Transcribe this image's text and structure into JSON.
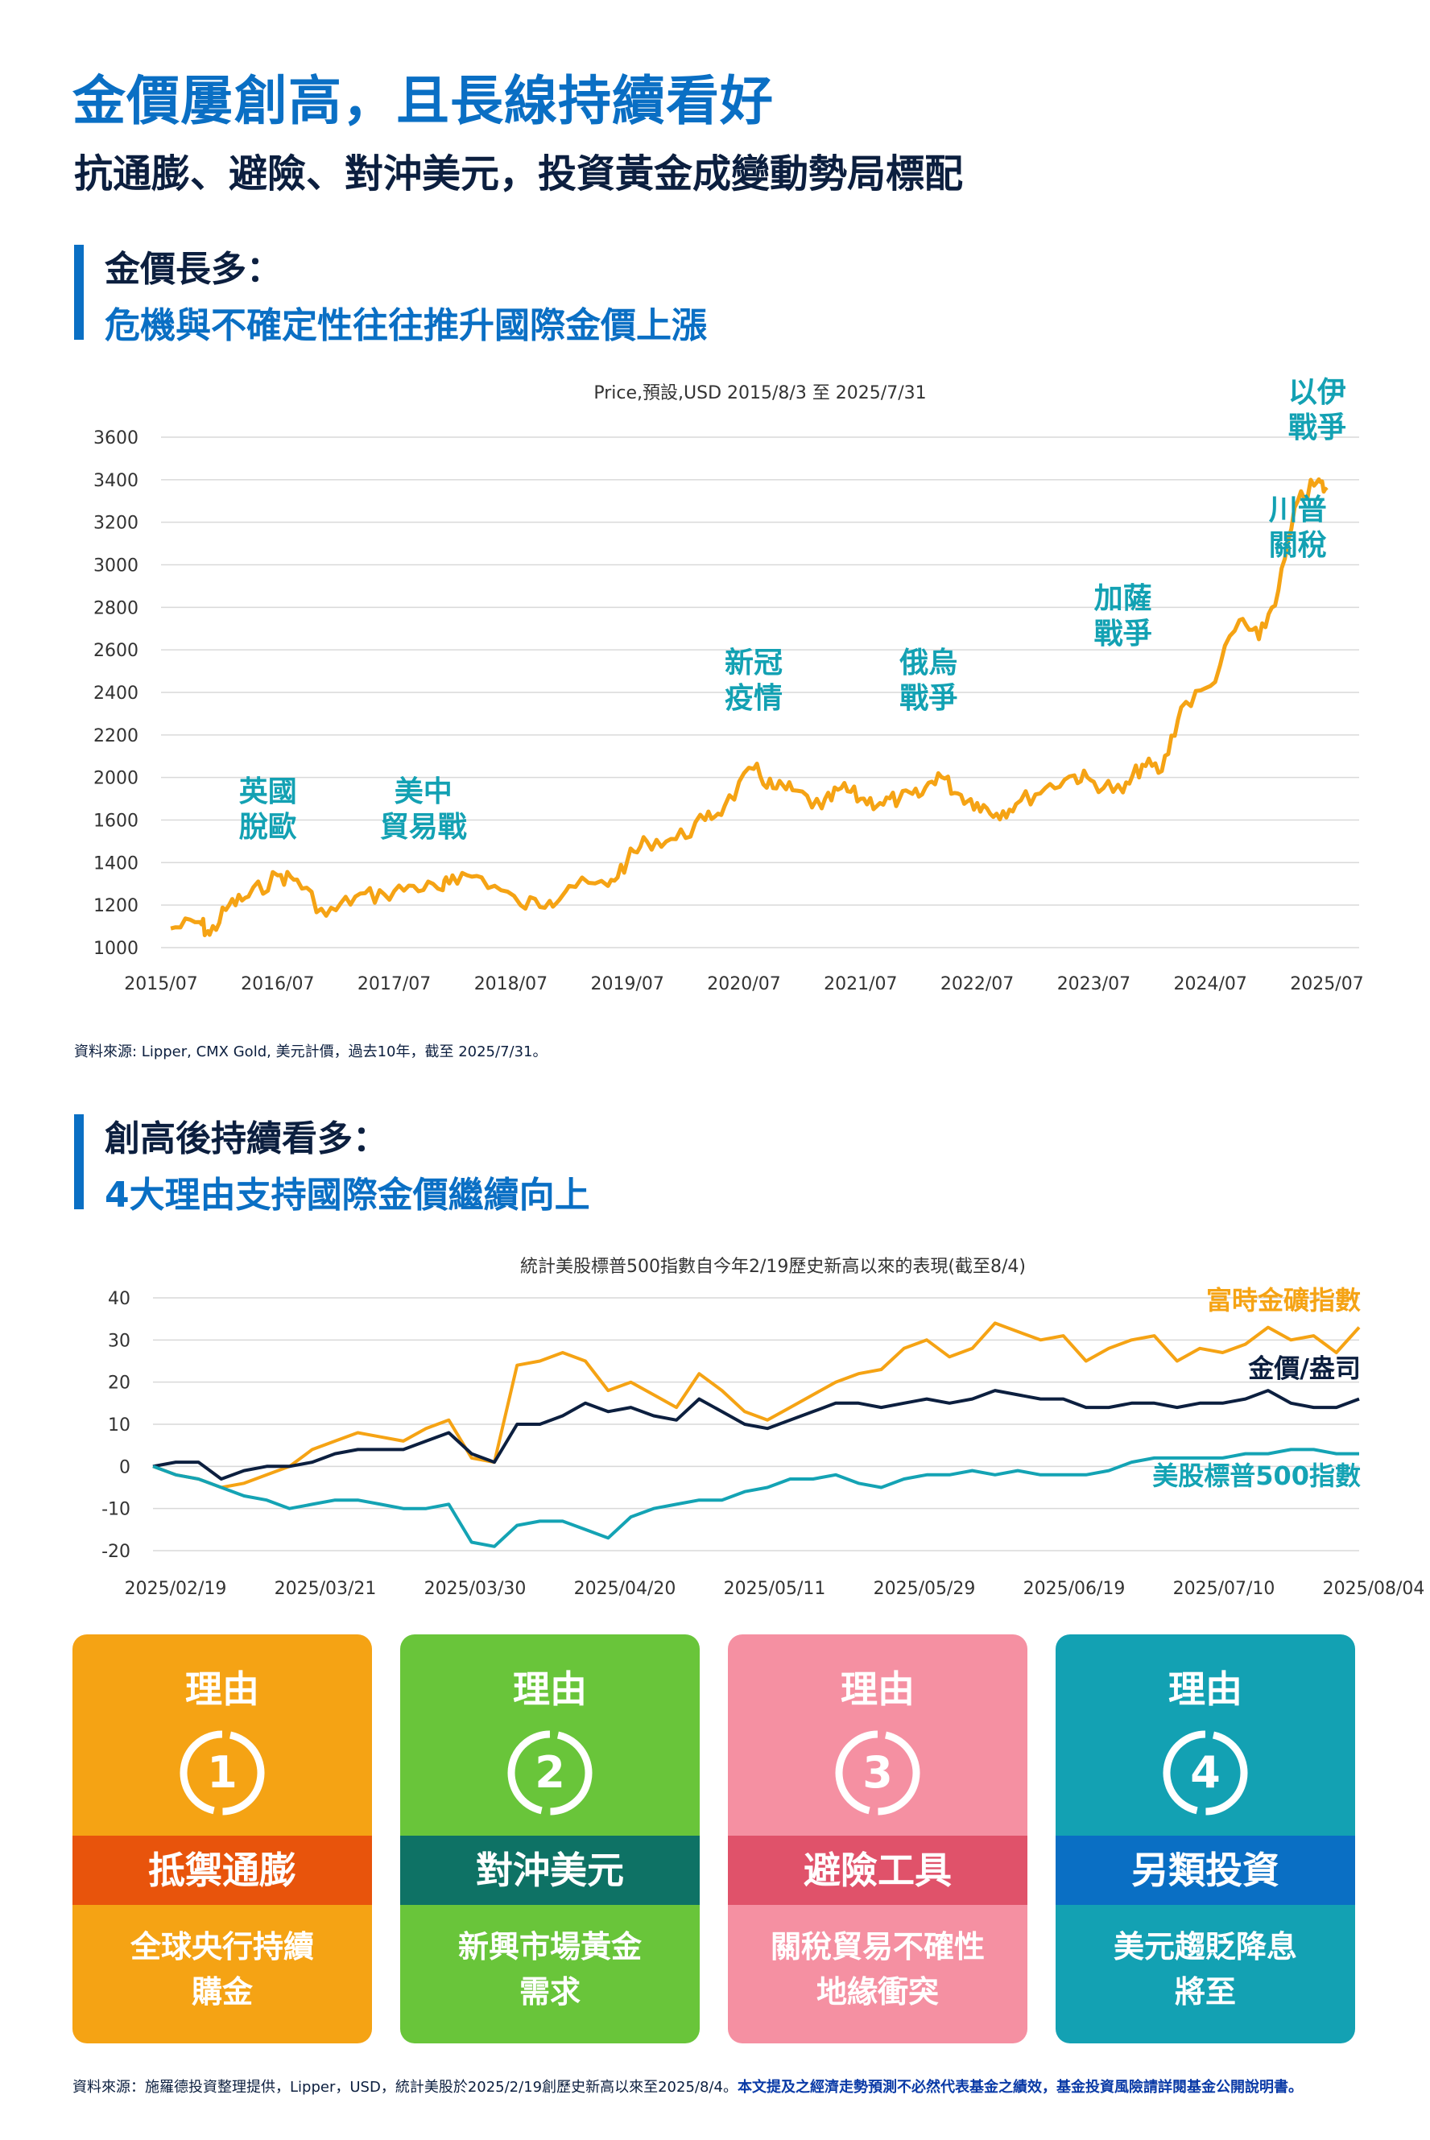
{
  "header": {
    "title": "金價屢創高，且長線持續看好",
    "subtitle": "抗通膨、避險、對沖美元，投資黃金成變動勢局標配"
  },
  "section1": {
    "heading_line1": "金價長多：",
    "heading_line2": "危機與不確定性往往推升國際金價上漲",
    "source": "資料來源: Lipper, CMX Gold, 美元計價，過去10年，截至 2025/7/31。"
  },
  "section2": {
    "heading_line1": "創高後持續看多：",
    "heading_line2": "4大理由支持國際金價繼續向上"
  },
  "colors": {
    "gold": "#f5a314",
    "navy": "#0c1f3f",
    "teal": "#14a3b4",
    "blue": "#0a6fc4"
  },
  "chart_data": [
    {
      "type": "line",
      "title": "Price,預設,USD 2015/8/3 至 2025/7/31",
      "x_tick_labels": [
        "2015/07",
        "2016/07",
        "2017/07",
        "2018/07",
        "2019/07",
        "2020/07",
        "2021/07",
        "2022/07",
        "2023/07",
        "2024/07",
        "2025/07"
      ],
      "y_tick_labels": [
        "1000",
        "1200",
        "1400",
        "1600",
        "2000",
        "2200",
        "2400",
        "2600",
        "2800",
        "3000",
        "3200",
        "3400",
        "3600"
      ],
      "series": [
        {
          "color": "#f5a314",
          "points": [
            [
              "2015/08",
              1090
            ],
            [
              "2015/11",
              1120
            ],
            [
              "2015/12",
              1060
            ],
            [
              "2016/02",
              1200
            ],
            [
              "2016/04",
              1240
            ],
            [
              "2016/07",
              1340
            ],
            [
              "2016/09",
              1320
            ],
            [
              "2016/12",
              1150
            ],
            [
              "2017/03",
              1240
            ],
            [
              "2017/06",
              1250
            ],
            [
              "2017/09",
              1290
            ],
            [
              "2017/12",
              1270
            ],
            [
              "2018/01",
              1340
            ],
            [
              "2018/04",
              1330
            ],
            [
              "2018/08",
              1200
            ],
            [
              "2018/11",
              1220
            ],
            [
              "2019/01",
              1290
            ],
            [
              "2019/05",
              1290
            ],
            [
              "2019/07",
              1410
            ],
            [
              "2019/09",
              1500
            ],
            [
              "2019/12",
              1510
            ],
            [
              "2020/03",
              1600
            ],
            [
              "2020/05",
              1730
            ],
            [
              "2020/08",
              2040
            ],
            [
              "2020/10",
              1900
            ],
            [
              "2020/12",
              1880
            ],
            [
              "2021/03",
              1710
            ],
            [
              "2021/05",
              1900
            ],
            [
              "2021/07",
              1800
            ],
            [
              "2021/09",
              1760
            ],
            [
              "2021/11",
              1800
            ],
            [
              "2022/01",
              1820
            ],
            [
              "2022/03",
              2020
            ],
            [
              "2022/05",
              1850
            ],
            [
              "2022/07",
              1760
            ],
            [
              "2022/09",
              1660
            ],
            [
              "2022/11",
              1750
            ],
            [
              "2023/02",
              1900
            ],
            [
              "2023/05",
              2010
            ],
            [
              "2023/07",
              1960
            ],
            [
              "2023/10",
              1860
            ],
            [
              "2023/12",
              2060
            ],
            [
              "2024/02",
              2030
            ],
            [
              "2024/04",
              2330
            ],
            [
              "2024/07",
              2430
            ],
            [
              "2024/10",
              2740
            ],
            [
              "2024/12",
              2650
            ],
            [
              "2025/02",
              2880
            ],
            [
              "2025/04",
              3300
            ],
            [
              "2025/06",
              3390
            ],
            [
              "2025/07",
              3350
            ]
          ]
        }
      ],
      "annotations": [
        {
          "text": "英國脫歐",
          "x": "2016/06"
        },
        {
          "text": "美中貿易戰",
          "x": "2017/10"
        },
        {
          "text": "新冠疫情",
          "x": "2020/08"
        },
        {
          "text": "俄烏戰爭",
          "x": "2022/02"
        },
        {
          "text": "加薩戰爭",
          "x": "2023/10"
        },
        {
          "text": "川普關稅",
          "x": "2025/04"
        },
        {
          "text": "以伊戰爭",
          "x": "2025/06"
        }
      ]
    },
    {
      "type": "line",
      "title": "統計美股標普500指數自今年2/19歷史新高以來的表現(截至8/4)",
      "x_tick_labels": [
        "2025/02/19",
        "2025/03/21",
        "2025/03/30",
        "2025/04/20",
        "2025/05/11",
        "2025/05/29",
        "2025/06/19",
        "2025/07/10",
        "2025/08/04"
      ],
      "ylim": [
        -20,
        40
      ],
      "y_ticks": [
        40,
        30,
        20,
        10,
        0,
        -10,
        -20
      ],
      "series": [
        {
          "name": "富時金礦指數",
          "color": "#f5a314",
          "values": [
            0,
            -2,
            -3,
            -5,
            -4,
            -2,
            0,
            4,
            6,
            8,
            7,
            6,
            9,
            11,
            2,
            1,
            24,
            25,
            27,
            25,
            18,
            20,
            17,
            14,
            22,
            18,
            13,
            11,
            14,
            17,
            20,
            22,
            23,
            28,
            30,
            26,
            28,
            34,
            32,
            30,
            31,
            25,
            28,
            30,
            31,
            25,
            28,
            27,
            29,
            33,
            30,
            31,
            27,
            33
          ]
        },
        {
          "name": "金價/盎司",
          "color": "#0c1f3f",
          "values": [
            0,
            1,
            1,
            -3,
            -1,
            0,
            0,
            1,
            3,
            4,
            4,
            4,
            6,
            8,
            3,
            1,
            10,
            10,
            12,
            15,
            13,
            14,
            12,
            11,
            16,
            13,
            10,
            9,
            11,
            13,
            15,
            15,
            14,
            15,
            16,
            15,
            16,
            18,
            17,
            16,
            16,
            14,
            14,
            15,
            15,
            14,
            15,
            15,
            16,
            18,
            15,
            14,
            14,
            16
          ]
        },
        {
          "name": "美股標普500指數",
          "color": "#14a3b4",
          "values": [
            0,
            -2,
            -3,
            -5,
            -7,
            -8,
            -10,
            -9,
            -8,
            -8,
            -9,
            -10,
            -10,
            -9,
            -18,
            -19,
            -14,
            -13,
            -13,
            -15,
            -17,
            -12,
            -10,
            -9,
            -8,
            -8,
            -6,
            -5,
            -3,
            -3,
            -2,
            -4,
            -5,
            -3,
            -2,
            -2,
            -1,
            -2,
            -1,
            -2,
            -2,
            -2,
            -1,
            1,
            2,
            2,
            2,
            2,
            3,
            3,
            4,
            4,
            3,
            3
          ]
        }
      ]
    }
  ],
  "reasons": [
    {
      "label": "理由",
      "number": "1",
      "title": "抵禦通膨",
      "desc_line1": "全球央行持續",
      "desc_line2": "購金",
      "bg": "#f5a314",
      "band": "#e8540c"
    },
    {
      "label": "理由",
      "number": "2",
      "title": "對沖美元",
      "desc_line1": "新興市場黃金",
      "desc_line2": "需求",
      "bg": "#69c53a",
      "band": "#0e7265"
    },
    {
      "label": "理由",
      "number": "3",
      "title": "避險工具",
      "desc_line1": "關稅貿易不確性",
      "desc_line2": "地緣衝突",
      "bg": "#f590a2",
      "band": "#e0526a"
    },
    {
      "label": "理由",
      "number": "4",
      "title": "另類投資",
      "desc_line1": "美元趨貶降息",
      "desc_line2": "將至",
      "bg": "#13a1b3",
      "band": "#0a6fc4"
    }
  ],
  "footer": {
    "text": "資料來源：施羅德投資整理提供，Lipper，USD，統計美股於2025/2/19創歷史新高以來至2025/8/4。",
    "disclaimer": "本文提及之經濟走勢預測不必然代表基金之績效，基金投資風險請詳閱基金公開說明書。"
  }
}
